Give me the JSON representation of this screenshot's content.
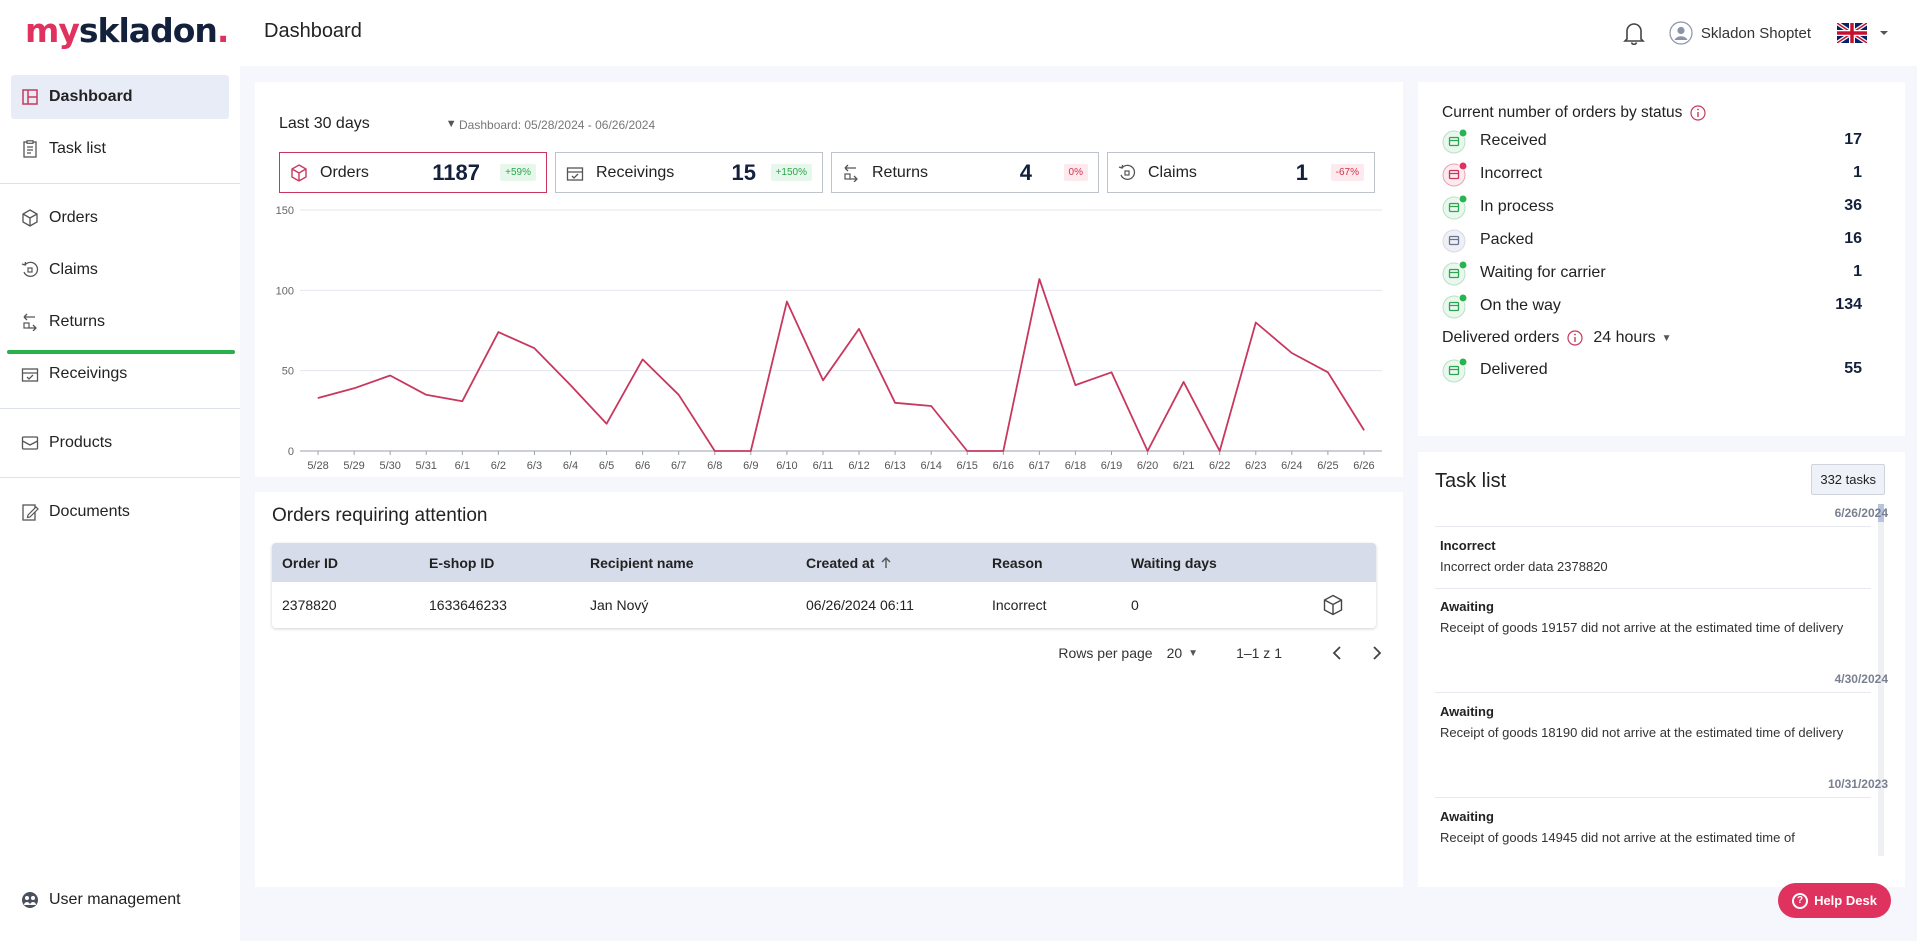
{
  "brand": {
    "part1": "my",
    "part2": "skladon",
    "part3": "."
  },
  "header": {
    "title": "Dashboard",
    "user_name": "Skladon Shoptet",
    "icons": [
      "bell-icon",
      "user-icon",
      "uk-flag-icon",
      "chevron-down-icon"
    ]
  },
  "sidebar": {
    "items": [
      {
        "label": "Dashboard",
        "icon": "dashboard-icon",
        "active": true
      },
      {
        "label": "Task list",
        "icon": "task-list-icon"
      },
      {
        "label": "Orders",
        "icon": "box-icon"
      },
      {
        "label": "Claims",
        "icon": "claims-icon"
      },
      {
        "label": "Returns",
        "icon": "returns-icon"
      },
      {
        "label": "Receivings",
        "icon": "receivings-icon"
      },
      {
        "label": "Products",
        "icon": "products-icon"
      },
      {
        "label": "Documents",
        "icon": "documents-icon"
      }
    ],
    "footer": {
      "label": "User management",
      "icon": "user-management-icon"
    }
  },
  "stats": {
    "range": "Last 30 days",
    "range_info": "Dashboard: 05/28/2024 - 06/26/2024",
    "kpis": [
      {
        "label": "Orders",
        "value": "1187",
        "change": "+59%",
        "trend": "up",
        "icon": "box-icon"
      },
      {
        "label": "Receivings",
        "value": "15",
        "change": "+150%",
        "trend": "up",
        "icon": "receivings-icon"
      },
      {
        "label": "Returns",
        "value": "4",
        "change": "0%",
        "trend": "down",
        "icon": "returns-icon"
      },
      {
        "label": "Claims",
        "value": "1",
        "change": "-67%",
        "trend": "down",
        "icon": "claims-icon"
      }
    ]
  },
  "chart_data": {
    "type": "line",
    "title": "",
    "xlabel": "",
    "ylabel": "",
    "ylim": [
      0,
      150
    ],
    "yticks": [
      0,
      50,
      100,
      150
    ],
    "grid": true,
    "categories": [
      "5/28",
      "5/29",
      "5/30",
      "5/31",
      "6/1",
      "6/2",
      "6/3",
      "6/4",
      "6/5",
      "6/6",
      "6/7",
      "6/8",
      "6/9",
      "6/10",
      "6/11",
      "6/12",
      "6/13",
      "6/14",
      "6/15",
      "6/16",
      "6/17",
      "6/18",
      "6/19",
      "6/20",
      "6/21",
      "6/22",
      "6/23",
      "6/24",
      "6/25",
      "6/26"
    ],
    "series": [
      {
        "values": [
          33,
          39,
          47,
          35,
          31,
          74,
          64,
          41,
          17,
          57,
          35,
          0,
          0,
          93,
          44,
          76,
          30,
          28,
          0,
          0,
          107,
          41,
          49,
          0,
          43,
          0,
          80,
          61,
          49,
          13
        ],
        "color": "#c8385e"
      }
    ]
  },
  "attention": {
    "title": "Orders requiring attention",
    "columns": [
      "Order ID",
      "E-shop ID",
      "Recipient name",
      "Created at",
      "Reason",
      "Waiting days"
    ],
    "rows": [
      {
        "order_id": "2378820",
        "eshop_id": "1633646233",
        "recipient": "Jan Nový",
        "created": "06/26/2024 06:11",
        "reason": "Incorrect",
        "waiting": "0"
      }
    ],
    "pager": {
      "rows_per_page_label": "Rows per page",
      "rows_per_page": "20",
      "range": "1–1 z 1"
    }
  },
  "status": {
    "title": "Current number of orders by status",
    "rows": [
      {
        "label": "Received",
        "value": "17",
        "icon": "received-status-icon",
        "badge": "#2ab451"
      },
      {
        "label": "Incorrect",
        "value": "1",
        "icon": "incorrect-status-icon",
        "badge": "#e0325e"
      },
      {
        "label": "In process",
        "value": "36",
        "icon": "in-process-status-icon",
        "badge": "#2ab451"
      },
      {
        "label": "Packed",
        "value": "16",
        "icon": "packed-status-icon",
        "badge": ""
      },
      {
        "label": "Waiting for carrier",
        "value": "1",
        "icon": "waiting-carrier-status-icon",
        "badge": "#2ab451"
      },
      {
        "label": "On the way",
        "value": "134",
        "icon": "on-the-way-status-icon",
        "badge": "#2ab451"
      }
    ],
    "delivered": {
      "header": "Delivered orders",
      "period": "24 hours",
      "label": "Delivered",
      "value": "55",
      "icon": "delivered-status-icon",
      "badge": "#2ab451"
    }
  },
  "tasks": {
    "title": "Task list",
    "count": "332 tasks",
    "dates": [
      "6/26/2024",
      "4/30/2024",
      "10/31/2023"
    ],
    "items": [
      {
        "title": "Incorrect",
        "desc": "Incorrect order data 2378820"
      },
      {
        "title": "Awaiting",
        "desc": "Receipt of goods 19157 did not arrive at the estimated time of delivery"
      },
      {
        "title": "Awaiting",
        "desc": "Receipt of goods 18190 did not arrive at the estimated time of delivery"
      },
      {
        "title": "Awaiting",
        "desc": "Receipt of goods 14945 did not arrive at the estimated time of"
      }
    ]
  },
  "helpdesk": {
    "label": "Help Desk",
    "icon": "question-icon"
  },
  "colors": {
    "accent": "#e0325e",
    "brand_dark": "#14213d",
    "line": "#c8385e",
    "active_nav": "#e8ecf7",
    "nav_indicator": "#28b04a"
  }
}
